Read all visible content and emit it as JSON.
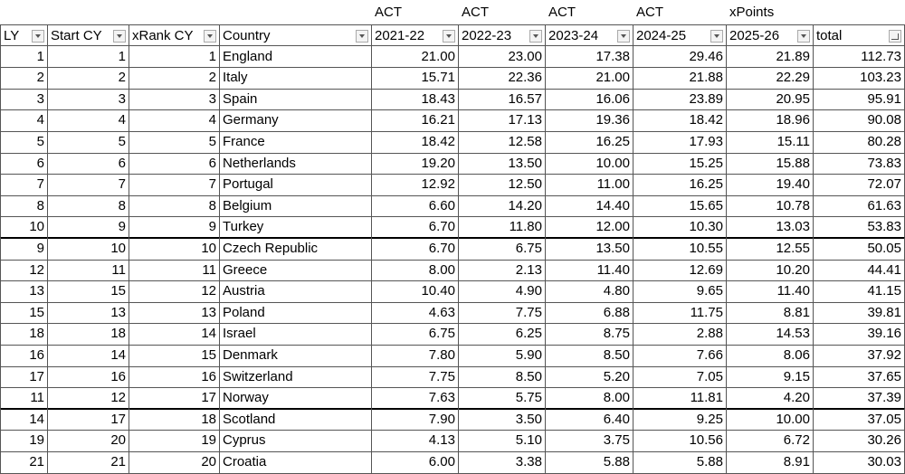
{
  "super_headers": [
    "ACT",
    "ACT",
    "ACT",
    "ACT",
    "xPoints"
  ],
  "table": {
    "headers": [
      "LY",
      "Start CY",
      "xRank CY",
      "Country",
      "2021-22",
      "2022-23",
      "2023-24",
      "2024-25",
      "2025-26",
      "total"
    ],
    "rows": [
      [
        1,
        1,
        1,
        "England",
        "21.00",
        "23.00",
        "17.38",
        "29.46",
        "21.89",
        "112.73"
      ],
      [
        2,
        2,
        2,
        "Italy",
        "15.71",
        "22.36",
        "21.00",
        "21.88",
        "22.29",
        "103.23"
      ],
      [
        3,
        3,
        3,
        "Spain",
        "18.43",
        "16.57",
        "16.06",
        "23.89",
        "20.95",
        "95.91"
      ],
      [
        4,
        4,
        4,
        "Germany",
        "16.21",
        "17.13",
        "19.36",
        "18.42",
        "18.96",
        "90.08"
      ],
      [
        5,
        5,
        5,
        "France",
        "18.42",
        "12.58",
        "16.25",
        "17.93",
        "15.11",
        "80.28"
      ],
      [
        6,
        6,
        6,
        "Netherlands",
        "19.20",
        "13.50",
        "10.00",
        "15.25",
        "15.88",
        "73.83"
      ],
      [
        7,
        7,
        7,
        "Portugal",
        "12.92",
        "12.50",
        "11.00",
        "16.25",
        "19.40",
        "72.07"
      ],
      [
        8,
        8,
        8,
        "Belgium",
        "6.60",
        "14.20",
        "14.40",
        "15.65",
        "10.78",
        "61.63"
      ],
      [
        10,
        9,
        9,
        "Turkey",
        "6.70",
        "11.80",
        "12.00",
        "10.30",
        "13.03",
        "53.83"
      ],
      [
        9,
        10,
        10,
        "Czech Republic",
        "6.70",
        "6.75",
        "13.50",
        "10.55",
        "12.55",
        "50.05"
      ],
      [
        12,
        11,
        11,
        "Greece",
        "8.00",
        "2.13",
        "11.40",
        "12.69",
        "10.20",
        "44.41"
      ],
      [
        13,
        15,
        12,
        "Austria",
        "10.40",
        "4.90",
        "4.80",
        "9.65",
        "11.40",
        "41.15"
      ],
      [
        15,
        13,
        13,
        "Poland",
        "4.63",
        "7.75",
        "6.88",
        "11.75",
        "8.81",
        "39.81"
      ],
      [
        18,
        18,
        14,
        "Israel",
        "6.75",
        "6.25",
        "8.75",
        "2.88",
        "14.53",
        "39.16"
      ],
      [
        16,
        14,
        15,
        "Denmark",
        "7.80",
        "5.90",
        "8.50",
        "7.66",
        "8.06",
        "37.92"
      ],
      [
        17,
        16,
        16,
        "Switzerland",
        "7.75",
        "8.50",
        "5.20",
        "7.05",
        "9.15",
        "37.65"
      ],
      [
        11,
        12,
        17,
        "Norway",
        "7.63",
        "5.75",
        "8.00",
        "11.81",
        "4.20",
        "37.39"
      ],
      [
        14,
        17,
        18,
        "Scotland",
        "7.90",
        "3.50",
        "6.40",
        "9.25",
        "10.00",
        "37.05"
      ],
      [
        19,
        20,
        19,
        "Cyprus",
        "4.13",
        "5.10",
        "3.75",
        "10.56",
        "6.72",
        "30.26"
      ],
      [
        21,
        21,
        20,
        "Croatia",
        "6.00",
        "3.38",
        "5.88",
        "5.88",
        "8.91",
        "30.03"
      ]
    ]
  }
}
